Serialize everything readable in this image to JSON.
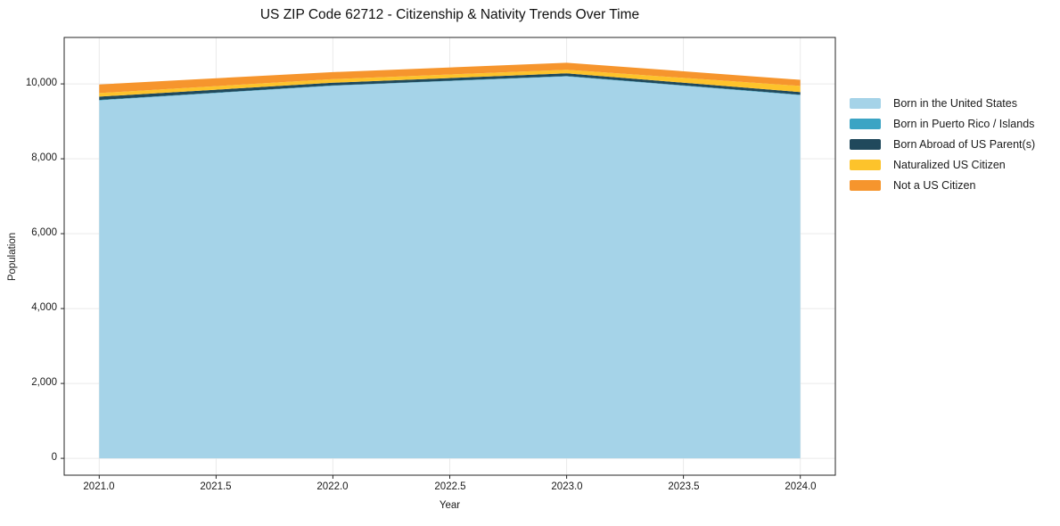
{
  "title": "US ZIP Code 62712 - Citizenship & Nativity Trends Over Time",
  "chart_data": {
    "type": "area",
    "stacked": true,
    "title": "US ZIP Code 62712 - Citizenship & Nativity Trends Over Time",
    "xlabel": "Year",
    "ylabel": "Population",
    "x": [
      2021,
      2022,
      2023,
      2024
    ],
    "series": [
      {
        "name": "Born in the United States",
        "color": "#A5D3E8",
        "values": [
          9560,
          9950,
          10200,
          9700
        ]
      },
      {
        "name": "Born in Puerto Rico / Islands",
        "color": "#3BA4C4",
        "values": [
          10,
          10,
          10,
          10
        ]
      },
      {
        "name": "Born Abroad of US Parent(s)",
        "color": "#20495C",
        "values": [
          90,
          70,
          70,
          70
        ]
      },
      {
        "name": "Naturalized US Citizen",
        "color": "#FDC32B",
        "values": [
          95,
          95,
          95,
          165
        ]
      },
      {
        "name": "Not a US Citizen",
        "color": "#F6952D",
        "values": [
          230,
          190,
          190,
          165
        ]
      }
    ],
    "xlim": [
      2020.85,
      2024.15
    ],
    "ylim": [
      -450,
      11240
    ],
    "x_tick_values": [
      2021.0,
      2021.5,
      2022.0,
      2022.5,
      2023.0,
      2023.5,
      2024.0
    ],
    "x_tick_labels": [
      "2021.0",
      "2021.5",
      "2022.0",
      "2022.5",
      "2023.0",
      "2023.5",
      "2024.0"
    ],
    "y_tick_values": [
      0,
      2000,
      4000,
      6000,
      8000,
      10000
    ],
    "y_tick_labels": [
      "0",
      "2,000",
      "4,000",
      "6,000",
      "8,000",
      "10,000"
    ],
    "grid": true,
    "legend_position": "right"
  }
}
